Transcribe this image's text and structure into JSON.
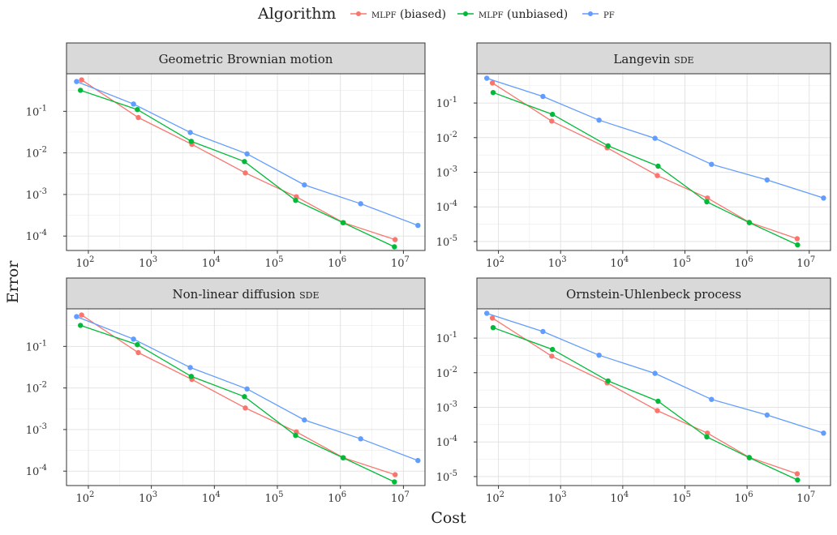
{
  "figure": {
    "x_axis_title": "Cost",
    "y_axis_title": "Error",
    "legend_title": "Algorithm"
  },
  "colors": {
    "mlpf_biased": "#F8766D",
    "mlpf_unbiased": "#00BA38",
    "pf": "#619CFF",
    "strip_bg": "#d9d9d9",
    "panel_border": "#333333",
    "grid": "#ebebeb"
  },
  "chart_data": [
    {
      "type": "line",
      "title": "Geometric Brownian motion",
      "xscale": "log",
      "yscale": "log",
      "xlim": [
        45,
        22000000
      ],
      "ylim": [
        4.5e-05,
        0.8
      ],
      "xticks": [
        "10^2",
        "10^3",
        "10^4",
        "10^5",
        "10^6",
        "10^7"
      ],
      "yticks": [
        "10^-4",
        "10^-3",
        "10^-2",
        "10^-1"
      ],
      "series": [
        {
          "name": "MLPF (biased)",
          "color": "#F8766D",
          "x": [
            78,
            620,
            4400,
            31000,
            200000,
            1120000,
            7400000
          ],
          "y": [
            0.57,
            0.071,
            0.016,
            0.0033,
            0.00088,
            0.00021,
            8.2e-05
          ]
        },
        {
          "name": "MLPF (unbiased)",
          "color": "#00BA38",
          "x": [
            75,
            600,
            4300,
            30000,
            195000,
            1100000,
            7200000
          ],
          "y": [
            0.32,
            0.11,
            0.019,
            0.0062,
            0.00072,
            0.00021,
            5.5e-05
          ]
        },
        {
          "name": "PF",
          "color": "#619CFF",
          "x": [
            65,
            520,
            4150,
            33000,
            268000,
            2100000,
            17000000
          ],
          "y": [
            0.52,
            0.15,
            0.031,
            0.0095,
            0.0017,
            0.0006,
            0.00018
          ]
        }
      ]
    },
    {
      "type": "line",
      "title": "Langevin SDE",
      "xscale": "log",
      "yscale": "log",
      "xlim": [
        45,
        22000000
      ],
      "ylim": [
        5.5e-06,
        0.7
      ],
      "xticks": [
        "10^2",
        "10^3",
        "10^4",
        "10^5",
        "10^6",
        "10^7"
      ],
      "yticks": [
        "10^-5",
        "10^-4",
        "10^-3",
        "10^-2",
        "10^-1"
      ],
      "series": [
        {
          "name": "MLPF (biased)",
          "color": "#F8766D",
          "x": [
            80,
            720,
            5600,
            36000,
            230000,
            1080000,
            6400000
          ],
          "y": [
            0.38,
            0.03,
            0.0051,
            0.0008,
            0.00018,
            3.6e-05,
            1.2e-05
          ]
        },
        {
          "name": "MLPF (unbiased)",
          "color": "#00BA38",
          "x": [
            82,
            740,
            5800,
            37000,
            225000,
            1090000,
            6500000
          ],
          "y": [
            0.2,
            0.047,
            0.0058,
            0.0015,
            0.00014,
            3.5e-05,
            8e-06
          ]
        },
        {
          "name": "PF",
          "color": "#619CFF",
          "x": [
            65,
            520,
            4150,
            33000,
            268000,
            2100000,
            17000000
          ],
          "y": [
            0.52,
            0.155,
            0.032,
            0.0096,
            0.0017,
            0.0006,
            0.00018
          ]
        }
      ]
    },
    {
      "type": "line",
      "title": "Non-linear diffusion SDE",
      "xscale": "log",
      "yscale": "log",
      "xlim": [
        45,
        22000000
      ],
      "ylim": [
        4.5e-05,
        0.8
      ],
      "xticks": [
        "10^2",
        "10^3",
        "10^4",
        "10^5",
        "10^6",
        "10^7"
      ],
      "yticks": [
        "10^-4",
        "10^-3",
        "10^-2",
        "10^-1"
      ],
      "series": [
        {
          "name": "MLPF (biased)",
          "color": "#F8766D",
          "x": [
            78,
            620,
            4400,
            31000,
            200000,
            1120000,
            7400000
          ],
          "y": [
            0.57,
            0.071,
            0.016,
            0.0033,
            0.00088,
            0.00021,
            8.2e-05
          ]
        },
        {
          "name": "MLPF (unbiased)",
          "color": "#00BA38",
          "x": [
            75,
            600,
            4300,
            30000,
            195000,
            1100000,
            7200000
          ],
          "y": [
            0.32,
            0.11,
            0.019,
            0.0062,
            0.00072,
            0.00021,
            5.5e-05
          ]
        },
        {
          "name": "PF",
          "color": "#619CFF",
          "x": [
            65,
            520,
            4150,
            33000,
            268000,
            2100000,
            17000000
          ],
          "y": [
            0.52,
            0.15,
            0.031,
            0.0095,
            0.0017,
            0.0006,
            0.00018
          ]
        }
      ]
    },
    {
      "type": "line",
      "title": "Ornstein-Uhlenbeck process",
      "xscale": "log",
      "yscale": "log",
      "xlim": [
        45,
        22000000
      ],
      "ylim": [
        5.5e-06,
        0.7
      ],
      "xticks": [
        "10^2",
        "10^3",
        "10^4",
        "10^5",
        "10^6",
        "10^7"
      ],
      "yticks": [
        "10^-5",
        "10^-4",
        "10^-3",
        "10^-2",
        "10^-1"
      ],
      "series": [
        {
          "name": "MLPF (biased)",
          "color": "#F8766D",
          "x": [
            80,
            720,
            5600,
            36000,
            230000,
            1080000,
            6400000
          ],
          "y": [
            0.38,
            0.03,
            0.0051,
            0.0008,
            0.00018,
            3.6e-05,
            1.2e-05
          ]
        },
        {
          "name": "MLPF (unbiased)",
          "color": "#00BA38",
          "x": [
            82,
            740,
            5800,
            37000,
            225000,
            1090000,
            6500000
          ],
          "y": [
            0.2,
            0.047,
            0.0058,
            0.0015,
            0.00014,
            3.5e-05,
            8e-06
          ]
        },
        {
          "name": "PF",
          "color": "#619CFF",
          "x": [
            65,
            520,
            4150,
            33000,
            268000,
            2100000,
            17000000
          ],
          "y": [
            0.52,
            0.155,
            0.032,
            0.0096,
            0.0017,
            0.0006,
            0.00018
          ]
        }
      ]
    }
  ]
}
